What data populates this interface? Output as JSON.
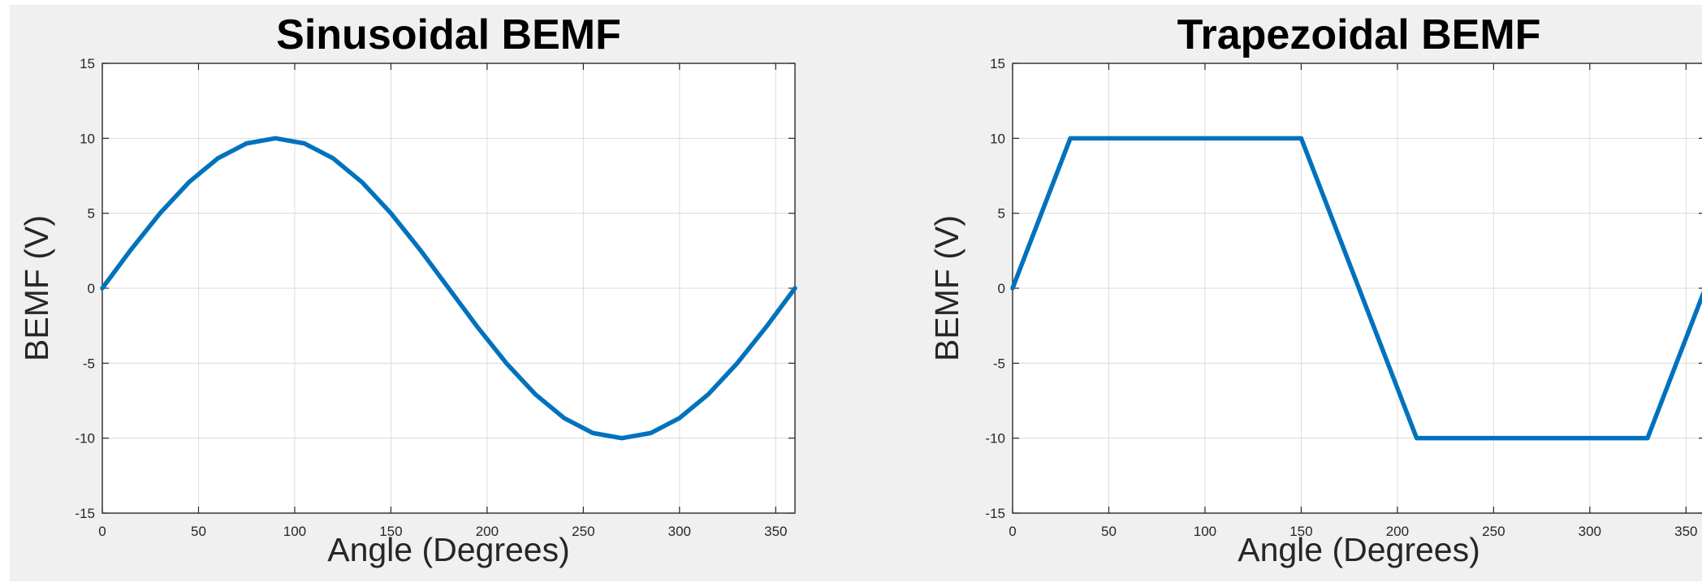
{
  "chart_data": [
    {
      "type": "line",
      "title": "Sinusoidal BEMF",
      "xlabel": "Angle (Degrees)",
      "ylabel": "BEMF (V)",
      "xlim": [
        0,
        360
      ],
      "ylim": [
        -15,
        15
      ],
      "xticks": [
        0,
        50,
        100,
        150,
        200,
        250,
        300,
        350
      ],
      "yticks": [
        -15,
        -10,
        -5,
        0,
        5,
        10,
        15
      ],
      "grid": true,
      "line_color": "#0072bd",
      "series": [
        {
          "x": [
            0,
            15,
            30,
            45,
            60,
            75,
            90,
            105,
            120,
            135,
            150,
            165,
            180,
            195,
            210,
            225,
            240,
            255,
            270,
            285,
            300,
            315,
            330,
            345,
            360
          ],
          "y": [
            0,
            2.59,
            5,
            7.07,
            8.66,
            9.66,
            10,
            9.66,
            8.66,
            7.07,
            5,
            2.59,
            0,
            -2.59,
            -5,
            -7.07,
            -8.66,
            -9.66,
            -10,
            -9.66,
            -8.66,
            -7.07,
            -5,
            -2.59,
            0
          ]
        }
      ]
    },
    {
      "type": "line",
      "title": "Trapezoidal BEMF",
      "xlabel": "Angle (Degrees)",
      "ylabel": "BEMF (V)",
      "xlim": [
        0,
        360
      ],
      "ylim": [
        -15,
        15
      ],
      "xticks": [
        0,
        50,
        100,
        150,
        200,
        250,
        300,
        350
      ],
      "yticks": [
        -15,
        -10,
        -5,
        0,
        5,
        10,
        15
      ],
      "grid": true,
      "line_color": "#0072bd",
      "series": [
        {
          "x": [
            0,
            30,
            150,
            210,
            330,
            360
          ],
          "y": [
            0,
            10,
            10,
            -10,
            -10,
            0
          ]
        }
      ]
    }
  ]
}
